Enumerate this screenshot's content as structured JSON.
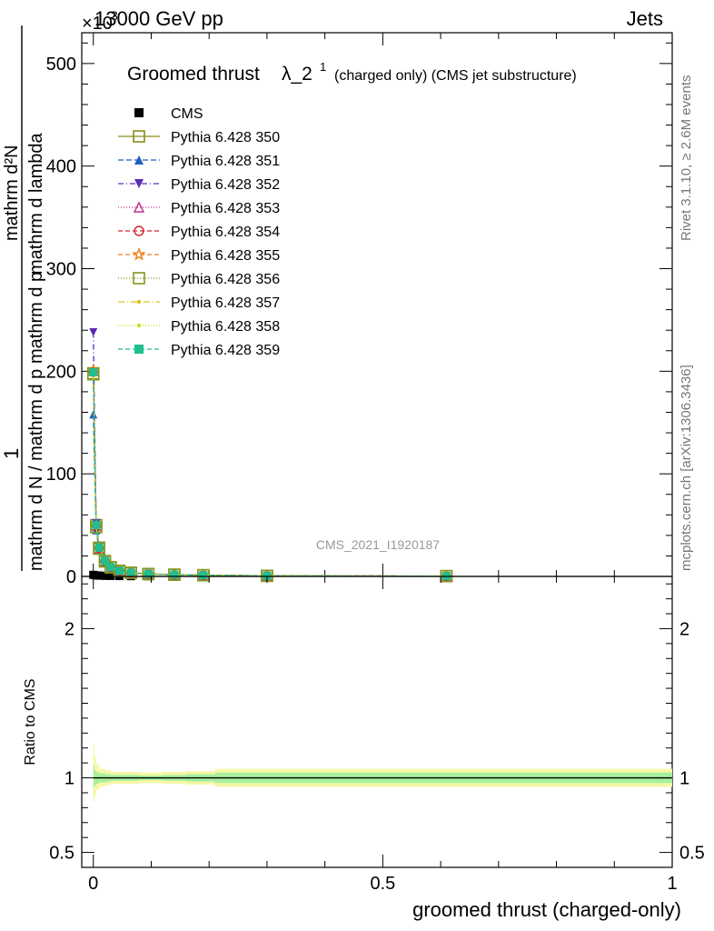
{
  "header": {
    "energy": "13000 GeV pp",
    "category": "Jets",
    "exponent_prefix": "×10",
    "exponent_power": "3"
  },
  "side_labels": {
    "rivet": "Rivet 3.1.10, ≥ 2.6M events",
    "mcplots": "mcplots.cern.ch [arXiv:1306.3436]"
  },
  "watermark": "CMS_2021_I1920187",
  "chart_data": [
    {
      "panel": "main",
      "type": "line",
      "title": "Groomed thrust λ_2¹",
      "title_main": "Groomed thrust",
      "title_lambda": "λ_2",
      "title_sup": "1",
      "subtitle": "(charged only) (CMS jet substructure)",
      "ylabel_top": "1",
      "ylabel_bottom": "mathrm d N / mathrm d p_T mathrm d p_T mathrm d lambda",
      "ylabel_num": "mathrm d²N",
      "ylabel_den": "mathrm d N / mathrm d p_T mathrm d p_T mathrm d lambda",
      "ylim": [
        0,
        530
      ],
      "y_scale_note": "×10³",
      "xlim": [
        -0.02,
        1.0
      ],
      "yticks": [
        0,
        100,
        200,
        300,
        400,
        500
      ],
      "ytick_labels": [
        "0",
        "100",
        "200",
        "300",
        "400",
        "500"
      ],
      "legend_position": "top-left",
      "x": [
        0.0,
        0.005,
        0.01,
        0.02,
        0.03,
        0.045,
        0.065,
        0.095,
        0.14,
        0.19,
        0.3,
        0.61
      ],
      "series": [
        {
          "name": "CMS",
          "color": "#000000",
          "marker": "filled-square",
          "dash": "none",
          "values": [
            1.5,
            1.0,
            0.8,
            0.6,
            0.5,
            0.4,
            0.3,
            0.2,
            0.15,
            0.1,
            0.05,
            0.02
          ]
        },
        {
          "name": "Pythia 6.428 350",
          "color": "#8c8c1a",
          "marker": "open-square",
          "dash": "none",
          "values": [
            198,
            50,
            28,
            15,
            9,
            5.5,
            3.6,
            2.4,
            1.7,
            1.2,
            0.6,
            0.3
          ]
        },
        {
          "name": "Pythia 6.428 351",
          "color": "#1f5fbf",
          "marker": "filled-triangle-up",
          "dash": "6,3",
          "values": [
            158,
            45,
            26,
            14,
            8.5,
            5.2,
            3.4,
            2.3,
            1.6,
            1.1,
            0.55,
            0.25
          ]
        },
        {
          "name": "Pythia 6.428 352",
          "color": "#5a2bb5",
          "marker": "filled-triangle-down",
          "dash": "6,3,1,3",
          "values": [
            238,
            52,
            29,
            15,
            9,
            5.6,
            3.7,
            2.5,
            1.7,
            1.2,
            0.6,
            0.3
          ]
        },
        {
          "name": "Pythia 6.428 353",
          "color": "#c0308f",
          "marker": "open-triangle-up",
          "dash": "1,2",
          "values": [
            200,
            49,
            27,
            14.5,
            8.8,
            5.4,
            3.5,
            2.4,
            1.65,
            1.15,
            0.58,
            0.28
          ]
        },
        {
          "name": "Pythia 6.428 354",
          "color": "#d4202a",
          "marker": "open-circle",
          "dash": "5,3",
          "values": [
            199,
            49,
            27.5,
            14.8,
            8.9,
            5.5,
            3.55,
            2.4,
            1.7,
            1.2,
            0.59,
            0.29
          ]
        },
        {
          "name": "Pythia 6.428 355",
          "color": "#f07d1a",
          "marker": "open-star",
          "dash": "5,3",
          "values": [
            201,
            50,
            28,
            15,
            9,
            5.5,
            3.6,
            2.4,
            1.7,
            1.2,
            0.6,
            0.3
          ]
        },
        {
          "name": "Pythia 6.428 356",
          "color": "#7f9a1f",
          "marker": "open-square",
          "dash": "1,2",
          "values": [
            197,
            48,
            27,
            14.6,
            8.8,
            5.4,
            3.5,
            2.35,
            1.65,
            1.15,
            0.58,
            0.28
          ]
        },
        {
          "name": "Pythia 6.428 357",
          "color": "#d9c41a",
          "marker": "small-dot",
          "dash": "7,3,1,3",
          "values": [
            196,
            49,
            27.5,
            14.8,
            8.9,
            5.45,
            3.55,
            2.4,
            1.68,
            1.18,
            0.59,
            0.29
          ]
        },
        {
          "name": "Pythia 6.428 358",
          "color": "#c7e021",
          "marker": "small-dot",
          "dash": "1,2",
          "values": [
            198,
            49.5,
            27.8,
            14.9,
            8.95,
            5.5,
            3.58,
            2.42,
            1.7,
            1.2,
            0.6,
            0.3
          ]
        },
        {
          "name": "Pythia 6.428 359",
          "color": "#1fbf8f",
          "marker": "filled-square",
          "dash": "5,3",
          "values": [
            199,
            50,
            28,
            15,
            9,
            5.5,
            3.6,
            2.4,
            1.7,
            1.2,
            0.6,
            0.3
          ]
        }
      ]
    },
    {
      "panel": "ratio",
      "type": "line",
      "ylabel": "Ratio to CMS",
      "xlabel": "groomed thrust (charged-only)",
      "ylim": [
        0.4,
        2.35
      ],
      "xlim": [
        -0.02,
        1.0
      ],
      "yticks": [
        0.5,
        1,
        2
      ],
      "ytick_labels": [
        "0.5",
        "1",
        "2"
      ],
      "xticks": [
        0,
        0.5,
        1
      ],
      "xtick_labels": [
        "0",
        "0.5",
        "1"
      ],
      "reference": 1.0,
      "band_edges": [
        0.0,
        0.002,
        0.005,
        0.01,
        0.02,
        0.03,
        0.05,
        0.08,
        0.12,
        0.16,
        0.21,
        1.0
      ],
      "band_outer": [
        [
          0.84,
          1.22
        ],
        [
          0.88,
          1.14
        ],
        [
          0.92,
          1.09
        ],
        [
          0.94,
          1.06
        ],
        [
          0.95,
          1.05
        ],
        [
          0.96,
          1.04
        ],
        [
          0.96,
          1.04
        ],
        [
          0.965,
          1.035
        ],
        [
          0.96,
          1.04
        ],
        [
          0.955,
          1.045
        ],
        [
          0.94,
          1.06
        ]
      ],
      "band_inner": [
        [
          0.93,
          1.08
        ],
        [
          0.95,
          1.05
        ],
        [
          0.96,
          1.04
        ],
        [
          0.97,
          1.03
        ],
        [
          0.975,
          1.025
        ],
        [
          0.98,
          1.02
        ],
        [
          0.98,
          1.02
        ],
        [
          0.985,
          1.015
        ],
        [
          0.98,
          1.02
        ],
        [
          0.975,
          1.025
        ],
        [
          0.965,
          1.035
        ]
      ],
      "band_colors": {
        "outer": "#f6f7a6",
        "inner": "#a7ef9e"
      }
    }
  ]
}
